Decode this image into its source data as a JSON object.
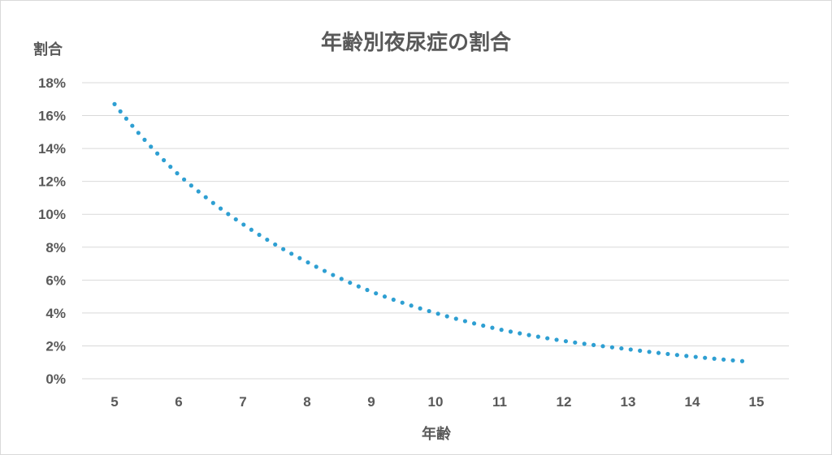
{
  "chart_data": {
    "type": "line",
    "title": "年齢別夜尿症の割合",
    "xlabel": "年齢",
    "ylabel": "割合",
    "x_ticks": [
      "5",
      "6",
      "7",
      "8",
      "9",
      "10",
      "11",
      "12",
      "13",
      "14",
      "15"
    ],
    "y_ticks": [
      "0%",
      "2%",
      "4%",
      "6%",
      "8%",
      "10%",
      "12%",
      "14%",
      "16%",
      "18%"
    ],
    "xlim": [
      5,
      15
    ],
    "ylim": [
      0,
      18
    ],
    "grid": true,
    "line_style": "dotted",
    "series": [
      {
        "color": "#2e9fd2",
        "x": [
          5,
          6,
          7,
          8,
          9,
          10,
          11,
          12,
          13,
          14,
          14.85
        ],
        "y": [
          16.7,
          12.4,
          9.4,
          7.1,
          5.3,
          4.0,
          3.0,
          2.3,
          1.8,
          1.35,
          1.05
        ]
      }
    ]
  }
}
